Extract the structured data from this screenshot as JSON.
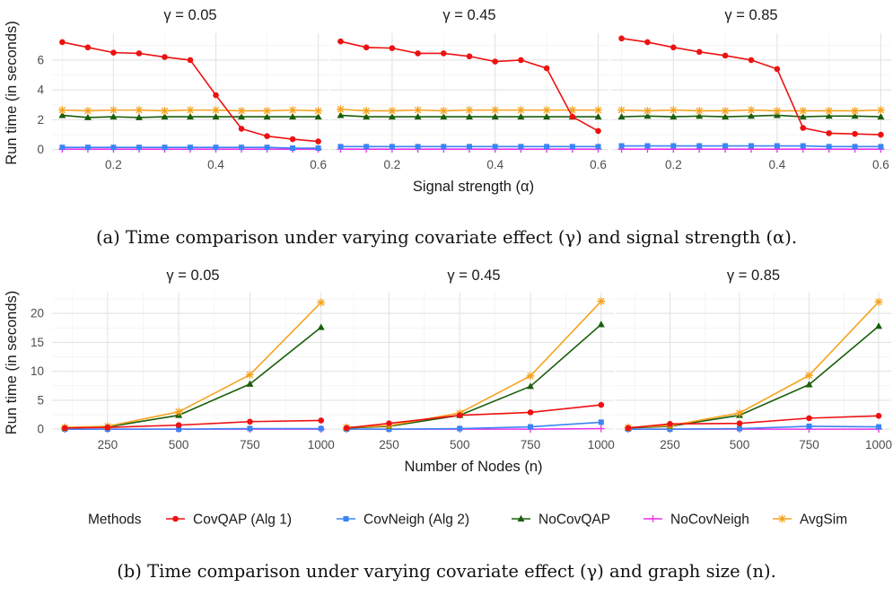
{
  "legend": {
    "title": "Methods",
    "items": [
      {
        "name": "CovQAP (Alg 1)",
        "color": "#ee1111",
        "marker": "circle"
      },
      {
        "name": "CovNeigh (Alg 2)",
        "color": "#3a85f5",
        "marker": "square"
      },
      {
        "name": "NoCovQAP",
        "color": "#1a5e0b",
        "marker": "triangle"
      },
      {
        "name": "NoCovNeigh",
        "color": "#e833e8",
        "marker": "plus"
      },
      {
        "name": "AvgSim",
        "color": "#f5a320",
        "marker": "asterisk"
      }
    ]
  },
  "captions": {
    "a": "(a) Time comparison under varying covariate effect (γ) and signal strength (α).",
    "b": "(b) Time comparison under varying covariate effect (γ) and graph size (n)."
  },
  "chart_data": [
    {
      "type": "line",
      "figure": "a",
      "xlabel": "Signal strength (α)",
      "ylabel": "Run time (in seconds)",
      "xlim": [
        0.08,
        0.62
      ],
      "ylim": [
        -0.2,
        7.8
      ],
      "xticks": [
        0.2,
        0.4,
        0.6
      ],
      "xtick_labels": [
        "0.2",
        "0.4",
        "0.6"
      ],
      "yticks": [
        0,
        2,
        4,
        6
      ],
      "ytick_labels": [
        "0",
        "2",
        "4",
        "6"
      ],
      "grid": true,
      "x": [
        0.1,
        0.15,
        0.2,
        0.25,
        0.3,
        0.35,
        0.4,
        0.45,
        0.5,
        0.55,
        0.6
      ],
      "panels": [
        {
          "title": "γ = 0.05",
          "series": [
            {
              "name": "CovQAP (Alg 1)",
              "values": [
                7.2,
                6.85,
                6.5,
                6.45,
                6.2,
                6.0,
                3.65,
                1.4,
                0.9,
                0.7,
                0.55
              ]
            },
            {
              "name": "CovNeigh (Alg 2)",
              "values": [
                0.15,
                0.15,
                0.15,
                0.15,
                0.15,
                0.15,
                0.15,
                0.15,
                0.15,
                0.1,
                0.1
              ]
            },
            {
              "name": "NoCovQAP",
              "values": [
                2.3,
                2.15,
                2.2,
                2.15,
                2.2,
                2.2,
                2.2,
                2.2,
                2.2,
                2.2,
                2.2
              ]
            },
            {
              "name": "NoCovNeigh",
              "values": [
                0.03,
                0.03,
                0.03,
                0.03,
                0.03,
                0.03,
                0.03,
                0.03,
                0.03,
                0.03,
                0.03
              ]
            },
            {
              "name": "AvgSim",
              "values": [
                2.65,
                2.6,
                2.65,
                2.65,
                2.6,
                2.65,
                2.65,
                2.6,
                2.6,
                2.65,
                2.6
              ]
            }
          ]
        },
        {
          "title": "γ = 0.45",
          "series": [
            {
              "name": "CovQAP (Alg 1)",
              "values": [
                7.25,
                6.85,
                6.8,
                6.45,
                6.45,
                6.25,
                5.9,
                6.0,
                5.45,
                2.2,
                1.25
              ]
            },
            {
              "name": "CovNeigh (Alg 2)",
              "values": [
                0.2,
                0.2,
                0.2,
                0.2,
                0.2,
                0.2,
                0.2,
                0.2,
                0.2,
                0.2,
                0.2
              ]
            },
            {
              "name": "NoCovQAP",
              "values": [
                2.3,
                2.2,
                2.2,
                2.2,
                2.2,
                2.2,
                2.2,
                2.2,
                2.2,
                2.2,
                2.2
              ]
            },
            {
              "name": "NoCovNeigh",
              "values": [
                0.03,
                0.03,
                0.03,
                0.03,
                0.03,
                0.03,
                0.03,
                0.03,
                0.03,
                0.03,
                0.03
              ]
            },
            {
              "name": "AvgSim",
              "values": [
                2.7,
                2.6,
                2.6,
                2.65,
                2.6,
                2.65,
                2.65,
                2.65,
                2.65,
                2.65,
                2.65
              ]
            }
          ]
        },
        {
          "title": "γ = 0.85",
          "series": [
            {
              "name": "CovQAP (Alg 1)",
              "values": [
                7.45,
                7.2,
                6.85,
                6.55,
                6.3,
                6.0,
                5.4,
                1.45,
                1.1,
                1.05,
                1.0
              ]
            },
            {
              "name": "CovNeigh (Alg 2)",
              "values": [
                0.25,
                0.25,
                0.25,
                0.25,
                0.25,
                0.25,
                0.25,
                0.25,
                0.2,
                0.2,
                0.2
              ]
            },
            {
              "name": "NoCovQAP",
              "values": [
                2.2,
                2.25,
                2.2,
                2.25,
                2.2,
                2.25,
                2.3,
                2.2,
                2.25,
                2.25,
                2.2
              ]
            },
            {
              "name": "NoCovNeigh",
              "values": [
                0.03,
                0.03,
                0.03,
                0.03,
                0.03,
                0.03,
                0.03,
                0.03,
                0.03,
                0.03,
                0.03
              ]
            },
            {
              "name": "AvgSim",
              "values": [
                2.65,
                2.6,
                2.65,
                2.6,
                2.6,
                2.65,
                2.6,
                2.6,
                2.6,
                2.6,
                2.65
              ]
            }
          ]
        }
      ]
    },
    {
      "type": "line",
      "figure": "b",
      "xlabel": "Number of Nodes (n)",
      "ylabel": "Run time (in seconds)",
      "xlim": [
        55,
        1045
      ],
      "ylim": [
        -0.6,
        23.6
      ],
      "xticks": [
        250,
        500,
        750,
        1000
      ],
      "xtick_labels": [
        "250",
        "500",
        "750",
        "1000"
      ],
      "yticks": [
        0,
        5,
        10,
        15,
        20
      ],
      "ytick_labels": [
        "0",
        "5",
        "10",
        "15",
        "20"
      ],
      "grid": true,
      "x": [
        100,
        250,
        500,
        750,
        1000
      ],
      "panels": [
        {
          "title": "γ = 0.05",
          "series": [
            {
              "name": "CovQAP (Alg 1)",
              "values": [
                0.2,
                0.3,
                0.7,
                1.3,
                1.5
              ]
            },
            {
              "name": "CovNeigh (Alg 2)",
              "values": [
                0.0,
                0.0,
                0.0,
                0.1,
                0.1
              ]
            },
            {
              "name": "NoCovQAP",
              "values": [
                0.2,
                0.4,
                2.4,
                7.8,
                17.6
              ]
            },
            {
              "name": "NoCovNeigh",
              "values": [
                0.0,
                0.0,
                0.0,
                0.0,
                0.0
              ]
            },
            {
              "name": "AvgSim",
              "values": [
                0.3,
                0.5,
                3.0,
                9.4,
                21.9
              ]
            }
          ]
        },
        {
          "title": "γ = 0.45",
          "series": [
            {
              "name": "CovQAP (Alg 1)",
              "values": [
                0.2,
                1.0,
                2.4,
                2.9,
                4.2
              ]
            },
            {
              "name": "CovNeigh (Alg 2)",
              "values": [
                0.0,
                0.0,
                0.1,
                0.4,
                1.2
              ]
            },
            {
              "name": "NoCovQAP",
              "values": [
                0.2,
                0.5,
                2.4,
                7.4,
                18.1
              ]
            },
            {
              "name": "NoCovNeigh",
              "values": [
                0.0,
                0.0,
                0.0,
                0.0,
                0.1
              ]
            },
            {
              "name": "AvgSim",
              "values": [
                0.3,
                0.6,
                2.8,
                9.2,
                22.1
              ]
            }
          ]
        },
        {
          "title": "γ = 0.85",
          "series": [
            {
              "name": "CovQAP (Alg 1)",
              "values": [
                0.2,
                0.9,
                1.0,
                1.9,
                2.3
              ]
            },
            {
              "name": "CovNeigh (Alg 2)",
              "values": [
                0.0,
                0.0,
                0.1,
                0.5,
                0.4
              ]
            },
            {
              "name": "NoCovQAP",
              "values": [
                0.2,
                0.5,
                2.4,
                7.7,
                17.8
              ]
            },
            {
              "name": "NoCovNeigh",
              "values": [
                0.0,
                0.0,
                0.0,
                0.0,
                0.0
              ]
            },
            {
              "name": "AvgSim",
              "values": [
                0.3,
                0.6,
                2.8,
                9.3,
                22.0
              ]
            }
          ]
        }
      ]
    }
  ]
}
